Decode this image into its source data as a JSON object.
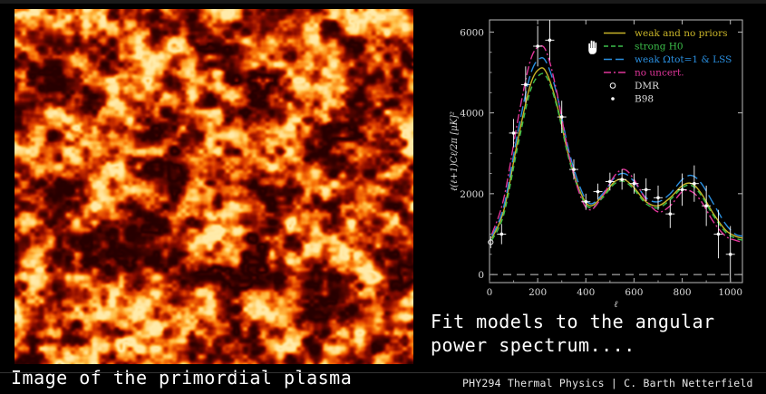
{
  "captions": {
    "left": "Image of the primordial plasma",
    "right_line1": "Fit models to the angular",
    "right_line2": "power spectrum....",
    "footer": "PHY294 Thermal Physics | C. Barth Netterfield"
  },
  "image": {
    "subject": "cmb-temperature-map",
    "palette": [
      "#2a0000",
      "#8a0a00",
      "#d83200",
      "#ff7a00",
      "#ffd060"
    ]
  },
  "chart_data": {
    "type": "line",
    "title": "",
    "xlabel": "ℓ",
    "ylabel": "ℓ(ℓ+1)Cℓ/2π  [μK]²",
    "xlim": [
      0,
      1050
    ],
    "ylim": [
      -200,
      6300
    ],
    "xticks": [
      0,
      200,
      400,
      600,
      800,
      1000
    ],
    "yticks": [
      0,
      2000,
      4000,
      6000
    ],
    "zero_line": "dashed",
    "legend_position": "top-right",
    "legend": [
      {
        "label": "weak and no priors",
        "color": "#c8b428",
        "style": "solid"
      },
      {
        "label": "strong H0",
        "color": "#3cbf4a",
        "style": "dashed"
      },
      {
        "label": "weak Ωtot=1 & LSS",
        "color": "#2a8fe0",
        "style": "longdash"
      },
      {
        "label": "no uncert.",
        "color": "#e0359a",
        "style": "dashdot"
      },
      {
        "label": "DMR",
        "color": "#ffffff",
        "style": "open-circle"
      },
      {
        "label": "B98",
        "color": "#ffffff",
        "style": "dot"
      }
    ],
    "series": [
      {
        "name": "weak and no priors",
        "color": "#c8b428",
        "dash": "",
        "x": [
          10,
          60,
          120,
          170,
          210,
          240,
          280,
          330,
          380,
          420,
          470,
          520,
          560,
          600,
          650,
          700,
          750,
          800,
          840,
          880,
          930,
          980,
          1020,
          1050
        ],
        "y": [
          900,
          1600,
          3400,
          4700,
          5100,
          4950,
          4200,
          2900,
          2000,
          1700,
          1950,
          2300,
          2350,
          2150,
          1800,
          1700,
          1900,
          2200,
          2250,
          2000,
          1500,
          1100,
          950,
          900
        ]
      },
      {
        "name": "strong H0",
        "color": "#3cbf4a",
        "dash": "6,4",
        "x": [
          10,
          60,
          120,
          170,
          210,
          240,
          280,
          330,
          380,
          420,
          470,
          520,
          560,
          600,
          650,
          700,
          750,
          800,
          840,
          880,
          930,
          980,
          1020,
          1050
        ],
        "y": [
          850,
          1500,
          3250,
          4550,
          4950,
          4850,
          4150,
          2850,
          1950,
          1650,
          1900,
          2250,
          2300,
          2100,
          1750,
          1650,
          1850,
          2150,
          2200,
          1950,
          1450,
          1050,
          900,
          850
        ]
      },
      {
        "name": "weak Ωtot=1 & LSS",
        "color": "#2a8fe0",
        "dash": "12,5",
        "x": [
          10,
          60,
          120,
          170,
          210,
          240,
          280,
          330,
          380,
          420,
          470,
          520,
          560,
          600,
          650,
          700,
          750,
          800,
          840,
          880,
          930,
          980,
          1020,
          1050
        ],
        "y": [
          950,
          1700,
          3600,
          4950,
          5350,
          5200,
          4450,
          3050,
          2100,
          1750,
          2000,
          2400,
          2500,
          2300,
          1900,
          1800,
          2000,
          2350,
          2450,
          2250,
          1750,
          1250,
          1000,
          950
        ]
      },
      {
        "name": "no uncert.",
        "color": "#e0359a",
        "dash": "10,3,2,3",
        "x": [
          10,
          60,
          120,
          170,
          210,
          240,
          280,
          330,
          380,
          420,
          470,
          520,
          560,
          600,
          650,
          700,
          750,
          800,
          840,
          880,
          930,
          980,
          1020,
          1050
        ],
        "y": [
          1000,
          1900,
          3900,
          5300,
          5650,
          5450,
          4500,
          2950,
          1900,
          1600,
          1950,
          2450,
          2600,
          2350,
          1850,
          1550,
          1700,
          2050,
          2050,
          1800,
          1300,
          950,
          850,
          800
        ]
      }
    ],
    "points_b98": [
      {
        "x": 50,
        "y": 1000,
        "err": 250
      },
      {
        "x": 100,
        "y": 3500,
        "err": 350
      },
      {
        "x": 150,
        "y": 4700,
        "err": 450
      },
      {
        "x": 200,
        "y": 5650,
        "err": 500
      },
      {
        "x": 250,
        "y": 5800,
        "err": 500
      },
      {
        "x": 300,
        "y": 3900,
        "err": 400
      },
      {
        "x": 350,
        "y": 2600,
        "err": 250
      },
      {
        "x": 400,
        "y": 1800,
        "err": 200
      },
      {
        "x": 450,
        "y": 2050,
        "err": 200
      },
      {
        "x": 500,
        "y": 2300,
        "err": 220
      },
      {
        "x": 550,
        "y": 2350,
        "err": 250
      },
      {
        "x": 600,
        "y": 2250,
        "err": 250
      },
      {
        "x": 650,
        "y": 2100,
        "err": 280
      },
      {
        "x": 700,
        "y": 1900,
        "err": 300
      },
      {
        "x": 750,
        "y": 1500,
        "err": 350
      },
      {
        "x": 800,
        "y": 2100,
        "err": 400
      },
      {
        "x": 850,
        "y": 2250,
        "err": 450
      },
      {
        "x": 900,
        "y": 1700,
        "err": 500
      },
      {
        "x": 950,
        "y": 1000,
        "err": 600
      },
      {
        "x": 1000,
        "y": 500,
        "err": 700
      }
    ],
    "points_dmr": [
      {
        "x": 5,
        "y": 800,
        "err": 150
      }
    ]
  }
}
